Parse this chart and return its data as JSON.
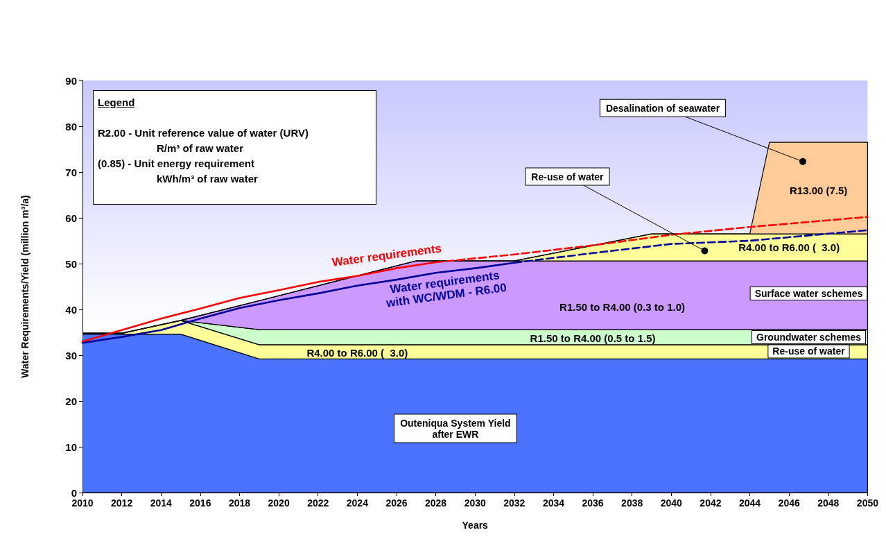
{
  "chart_data": {
    "type": "area",
    "stacked": true,
    "xlabel": "Years",
    "ylabel": "Water Requirements/Yield (million m³/a)",
    "xlim": [
      2010,
      2050
    ],
    "xticks": [
      2010,
      2012,
      2014,
      2016,
      2018,
      2020,
      2022,
      2024,
      2026,
      2028,
      2030,
      2032,
      2034,
      2036,
      2038,
      2040,
      2042,
      2044,
      2046,
      2048,
      2050
    ],
    "ylim": [
      0,
      90
    ],
    "yticks": [
      0,
      10,
      20,
      30,
      40,
      50,
      60,
      70,
      80,
      90
    ],
    "grid": false,
    "marker": "none",
    "series": [
      {
        "color": "#4a74ff",
        "x": [
          2010,
          2012,
          2015,
          2019,
          2027,
          2032,
          2039,
          2044,
          2045,
          2050
        ],
        "values": [
          34.6,
          34.6,
          34.6,
          29.2,
          29.2,
          29.2,
          29.2,
          29.2,
          29.2,
          29.2
        ]
      },
      {
        "color": "#ffff99",
        "x": [
          2010,
          2012,
          2015,
          2019,
          2027,
          2032,
          2039,
          2044,
          2045,
          2050
        ],
        "values": [
          0.2,
          0.2,
          3.0,
          3.1,
          3.1,
          3.1,
          3.1,
          3.1,
          3.1,
          3.1
        ]
      },
      {
        "color": "#ccffcc",
        "x": [
          2010,
          2012,
          2015,
          2019,
          2027,
          2032,
          2039,
          2044,
          2045,
          2050
        ],
        "values": [
          0,
          0,
          0,
          3.3,
          3.3,
          3.3,
          3.3,
          3.3,
          3.3,
          3.3
        ]
      },
      {
        "color": "#cc99ff",
        "x": [
          2010,
          2012,
          2015,
          2019,
          2027,
          2032,
          2039,
          2044,
          2045,
          2050
        ],
        "values": [
          0,
          0,
          0,
          6.3,
          15.0,
          15.0,
          15.0,
          15.0,
          15.0,
          15.0
        ]
      },
      {
        "color": "#ffff99",
        "x": [
          2010,
          2012,
          2015,
          2019,
          2027,
          2032,
          2039,
          2044,
          2045,
          2050
        ],
        "values": [
          0,
          0,
          0,
          0,
          0,
          0,
          5.9,
          5.9,
          5.9,
          5.9
        ]
      },
      {
        "color": "#ffcc99",
        "x": [
          2010,
          2012,
          2015,
          2019,
          2027,
          2032,
          2039,
          2044,
          2045,
          2050
        ],
        "values": [
          0,
          0,
          0,
          0,
          0,
          0,
          0,
          0,
          20.0,
          20.0
        ]
      },
      {
        "type": "line",
        "color": "#ff0000",
        "line_style": "solid",
        "x": [
          2010,
          2012,
          2014,
          2016,
          2018,
          2020,
          2022,
          2024,
          2026,
          2028
        ],
        "values": [
          33.0,
          35.5,
          38.0,
          40.2,
          42.5,
          44.2,
          46.0,
          47.3,
          49.0,
          50.3
        ]
      },
      {
        "type": "line",
        "color": "#ff0000",
        "line_style": "dashed",
        "x": [
          2028,
          2032,
          2036,
          2040,
          2044,
          2050
        ],
        "values": [
          50.3,
          52.0,
          54.0,
          56.3,
          58.0,
          60.2
        ]
      },
      {
        "type": "line",
        "color": "#000099",
        "line_style": "solid",
        "x": [
          2010,
          2012,
          2014,
          2016,
          2018,
          2020,
          2022,
          2024,
          2026,
          2028,
          2030,
          2032
        ],
        "values": [
          32.7,
          34.0,
          35.5,
          38.0,
          40.3,
          42.0,
          43.5,
          45.2,
          46.5,
          48.0,
          49.0,
          50.2
        ]
      },
      {
        "type": "line",
        "color": "#000099",
        "line_style": "dashed",
        "x": [
          2032,
          2036,
          2040,
          2044,
          2050
        ],
        "values": [
          50.2,
          52.3,
          54.3,
          55.0,
          57.3
        ]
      }
    ],
    "annotations": [
      {
        "text": "Desalination of seawater",
        "x": 2046.7,
        "y": 72.3
      },
      {
        "text": "Re-use of water",
        "x": 2041.7,
        "y": 52.8
      },
      "R13.00 (7.5)",
      "R4.00 to R6.00 (  3.0)",
      "Surface water schemes",
      "R1.50 to R4.00 (0.3 to 1.0)",
      "Groundwater schemes",
      "R1.50 to R4.00 (0.5 to 1.5)",
      "Re-use of water",
      "R4.00 to R6.00 (  3.0)",
      "Outeniqua System Yield\nafter EWR",
      "Water requirements",
      "Water requirements\nwith WC/WDM - R6.00",
      "Legend",
      "R2.00 - Unit reference value of water (URV)",
      "R/m³ of raw water",
      "(0.85) - Unit energy requirement",
      "kWh/m³ of raw water"
    ]
  }
}
